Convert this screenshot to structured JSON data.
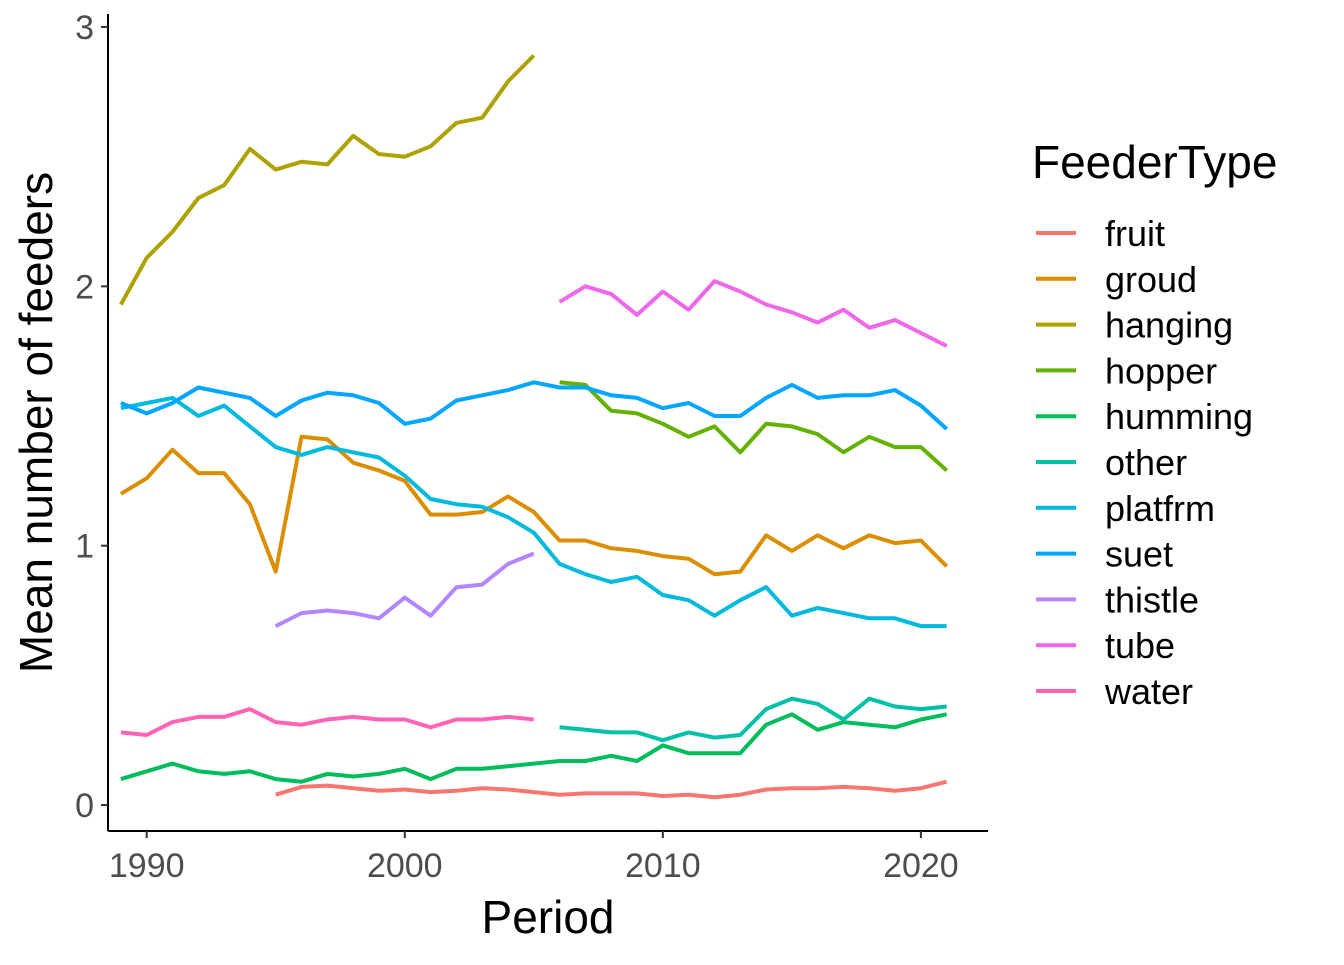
{
  "chart_data": {
    "type": "line",
    "xlabel": "Period",
    "ylabel": "Mean number of feeders",
    "xlim": [
      1988.5,
      2022.6
    ],
    "ylim": [
      -0.1,
      3.05
    ],
    "x_ticks": [
      1990,
      2000,
      2010,
      2020
    ],
    "y_ticks": [
      0,
      1,
      2,
      3
    ],
    "grid": false,
    "legend": {
      "title": "FeederType",
      "position": "right"
    },
    "series": [
      {
        "name": "fruit",
        "color": "#F8766D",
        "points": [
          [
            1995,
            0.04
          ],
          [
            1996,
            0.07
          ],
          [
            1997,
            0.075
          ],
          [
            1998,
            0.065
          ],
          [
            1999,
            0.055
          ],
          [
            2000,
            0.06
          ],
          [
            2001,
            0.05
          ],
          [
            2002,
            0.055
          ],
          [
            2003,
            0.065
          ],
          [
            2004,
            0.06
          ],
          [
            2005,
            0.05
          ],
          [
            2006,
            0.04
          ],
          [
            2007,
            0.045
          ],
          [
            2008,
            0.045
          ],
          [
            2009,
            0.045
          ],
          [
            2010,
            0.035
          ],
          [
            2011,
            0.04
          ],
          [
            2012,
            0.03
          ],
          [
            2013,
            0.04
          ],
          [
            2014,
            0.06
          ],
          [
            2015,
            0.065
          ],
          [
            2016,
            0.065
          ],
          [
            2017,
            0.07
          ],
          [
            2018,
            0.065
          ],
          [
            2019,
            0.055
          ],
          [
            2020,
            0.065
          ],
          [
            2021,
            0.09
          ]
        ]
      },
      {
        "name": "groud",
        "color": "#DB8E00",
        "points": [
          [
            1989,
            1.2
          ],
          [
            1990,
            1.26
          ],
          [
            1991,
            1.37
          ],
          [
            1992,
            1.28
          ],
          [
            1993,
            1.28
          ],
          [
            1994,
            1.16
          ],
          [
            1995,
            0.9
          ],
          [
            1996,
            1.42
          ],
          [
            1997,
            1.41
          ],
          [
            1998,
            1.32
          ],
          [
            1999,
            1.29
          ],
          [
            2000,
            1.25
          ],
          [
            2001,
            1.12
          ],
          [
            2002,
            1.12
          ],
          [
            2003,
            1.13
          ],
          [
            2004,
            1.19
          ],
          [
            2005,
            1.13
          ],
          [
            2006,
            1.02
          ],
          [
            2007,
            1.02
          ],
          [
            2008,
            0.99
          ],
          [
            2009,
            0.98
          ],
          [
            2010,
            0.96
          ],
          [
            2011,
            0.95
          ],
          [
            2012,
            0.89
          ],
          [
            2013,
            0.9
          ],
          [
            2014,
            1.04
          ],
          [
            2015,
            0.98
          ],
          [
            2016,
            1.04
          ],
          [
            2017,
            0.99
          ],
          [
            2018,
            1.04
          ],
          [
            2019,
            1.01
          ],
          [
            2020,
            1.02
          ],
          [
            2021,
            0.92
          ]
        ]
      },
      {
        "name": "hanging",
        "color": "#AEA200",
        "points": [
          [
            1989,
            1.93
          ],
          [
            1990,
            2.11
          ],
          [
            1991,
            2.21
          ],
          [
            1992,
            2.34
          ],
          [
            1993,
            2.39
          ],
          [
            1994,
            2.53
          ],
          [
            1995,
            2.45
          ],
          [
            1996,
            2.48
          ],
          [
            1997,
            2.47
          ],
          [
            1998,
            2.58
          ],
          [
            1999,
            2.51
          ],
          [
            2000,
            2.5
          ],
          [
            2001,
            2.54
          ],
          [
            2002,
            2.63
          ],
          [
            2003,
            2.65
          ],
          [
            2004,
            2.79
          ],
          [
            2005,
            2.89
          ]
        ]
      },
      {
        "name": "hopper",
        "color": "#64B200",
        "points": [
          [
            2006,
            1.63
          ],
          [
            2007,
            1.62
          ],
          [
            2008,
            1.52
          ],
          [
            2009,
            1.51
          ],
          [
            2010,
            1.47
          ],
          [
            2011,
            1.42
          ],
          [
            2012,
            1.46
          ],
          [
            2013,
            1.36
          ],
          [
            2014,
            1.47
          ],
          [
            2015,
            1.46
          ],
          [
            2016,
            1.43
          ],
          [
            2017,
            1.36
          ],
          [
            2018,
            1.42
          ],
          [
            2019,
            1.38
          ],
          [
            2020,
            1.38
          ],
          [
            2021,
            1.29
          ]
        ]
      },
      {
        "name": "humming",
        "color": "#00BD5C",
        "points": [
          [
            1989,
            0.1
          ],
          [
            1990,
            0.13
          ],
          [
            1991,
            0.16
          ],
          [
            1992,
            0.13
          ],
          [
            1993,
            0.12
          ],
          [
            1994,
            0.13
          ],
          [
            1995,
            0.1
          ],
          [
            1996,
            0.09
          ],
          [
            1997,
            0.12
          ],
          [
            1998,
            0.11
          ],
          [
            1999,
            0.12
          ],
          [
            2000,
            0.14
          ],
          [
            2001,
            0.1
          ],
          [
            2002,
            0.14
          ],
          [
            2003,
            0.14
          ],
          [
            2004,
            0.15
          ],
          [
            2005,
            0.16
          ],
          [
            2006,
            0.17
          ],
          [
            2007,
            0.17
          ],
          [
            2008,
            0.19
          ],
          [
            2009,
            0.17
          ],
          [
            2010,
            0.23
          ],
          [
            2011,
            0.2
          ],
          [
            2012,
            0.2
          ],
          [
            2013,
            0.2
          ],
          [
            2014,
            0.31
          ],
          [
            2015,
            0.35
          ],
          [
            2016,
            0.29
          ],
          [
            2017,
            0.32
          ],
          [
            2018,
            0.31
          ],
          [
            2019,
            0.3
          ],
          [
            2020,
            0.33
          ],
          [
            2021,
            0.35
          ]
        ]
      },
      {
        "name": "other",
        "color": "#00C1A7",
        "points": [
          [
            2006,
            0.3
          ],
          [
            2007,
            0.29
          ],
          [
            2008,
            0.28
          ],
          [
            2009,
            0.28
          ],
          [
            2010,
            0.25
          ],
          [
            2011,
            0.28
          ],
          [
            2012,
            0.26
          ],
          [
            2013,
            0.27
          ],
          [
            2014,
            0.37
          ],
          [
            2015,
            0.41
          ],
          [
            2016,
            0.39
          ],
          [
            2017,
            0.33
          ],
          [
            2018,
            0.41
          ],
          [
            2019,
            0.38
          ],
          [
            2020,
            0.37
          ],
          [
            2021,
            0.38
          ]
        ]
      },
      {
        "name": "platfrm",
        "color": "#00BADE",
        "points": [
          [
            1989,
            1.53
          ],
          [
            1990,
            1.55
          ],
          [
            1991,
            1.57
          ],
          [
            1992,
            1.5
          ],
          [
            1993,
            1.54
          ],
          [
            1994,
            1.46
          ],
          [
            1995,
            1.38
          ],
          [
            1996,
            1.35
          ],
          [
            1997,
            1.38
          ],
          [
            1998,
            1.36
          ],
          [
            1999,
            1.34
          ],
          [
            2000,
            1.27
          ],
          [
            2001,
            1.18
          ],
          [
            2002,
            1.16
          ],
          [
            2003,
            1.15
          ],
          [
            2004,
            1.11
          ],
          [
            2005,
            1.05
          ],
          [
            2006,
            0.93
          ],
          [
            2007,
            0.89
          ],
          [
            2008,
            0.86
          ],
          [
            2009,
            0.88
          ],
          [
            2010,
            0.81
          ],
          [
            2011,
            0.79
          ],
          [
            2012,
            0.73
          ],
          [
            2013,
            0.79
          ],
          [
            2014,
            0.84
          ],
          [
            2015,
            0.73
          ],
          [
            2016,
            0.76
          ],
          [
            2017,
            0.74
          ],
          [
            2018,
            0.72
          ],
          [
            2019,
            0.72
          ],
          [
            2020,
            0.69
          ],
          [
            2021,
            0.69
          ]
        ]
      },
      {
        "name": "suet",
        "color": "#00A6FF",
        "points": [
          [
            1989,
            1.55
          ],
          [
            1990,
            1.51
          ],
          [
            1991,
            1.55
          ],
          [
            1992,
            1.61
          ],
          [
            1993,
            1.59
          ],
          [
            1994,
            1.57
          ],
          [
            1995,
            1.5
          ],
          [
            1996,
            1.56
          ],
          [
            1997,
            1.59
          ],
          [
            1998,
            1.58
          ],
          [
            1999,
            1.55
          ],
          [
            2000,
            1.47
          ],
          [
            2001,
            1.49
          ],
          [
            2002,
            1.56
          ],
          [
            2003,
            1.58
          ],
          [
            2004,
            1.6
          ],
          [
            2005,
            1.63
          ],
          [
            2006,
            1.61
          ],
          [
            2007,
            1.61
          ],
          [
            2008,
            1.58
          ],
          [
            2009,
            1.57
          ],
          [
            2010,
            1.53
          ],
          [
            2011,
            1.55
          ],
          [
            2012,
            1.5
          ],
          [
            2013,
            1.5
          ],
          [
            2014,
            1.57
          ],
          [
            2015,
            1.62
          ],
          [
            2016,
            1.57
          ],
          [
            2017,
            1.58
          ],
          [
            2018,
            1.58
          ],
          [
            2019,
            1.6
          ],
          [
            2020,
            1.54
          ],
          [
            2021,
            1.45
          ]
        ]
      },
      {
        "name": "thistle",
        "color": "#B385FF",
        "points": [
          [
            1995,
            0.69
          ],
          [
            1996,
            0.74
          ],
          [
            1997,
            0.75
          ],
          [
            1998,
            0.74
          ],
          [
            1999,
            0.72
          ],
          [
            2000,
            0.8
          ],
          [
            2001,
            0.73
          ],
          [
            2002,
            0.84
          ],
          [
            2003,
            0.85
          ],
          [
            2004,
            0.93
          ],
          [
            2005,
            0.97
          ]
        ]
      },
      {
        "name": "tube",
        "color": "#EF67EB",
        "points": [
          [
            2006,
            1.94
          ],
          [
            2007,
            2.0
          ],
          [
            2008,
            1.97
          ],
          [
            2009,
            1.89
          ],
          [
            2010,
            1.98
          ],
          [
            2011,
            1.91
          ],
          [
            2012,
            2.02
          ],
          [
            2013,
            1.98
          ],
          [
            2014,
            1.93
          ],
          [
            2015,
            1.9
          ],
          [
            2016,
            1.86
          ],
          [
            2017,
            1.91
          ],
          [
            2018,
            1.84
          ],
          [
            2019,
            1.87
          ],
          [
            2020,
            1.82
          ],
          [
            2021,
            1.77
          ]
        ]
      },
      {
        "name": "water",
        "color": "#FF63B6",
        "points": [
          [
            1989,
            0.28
          ],
          [
            1990,
            0.27
          ],
          [
            1991,
            0.32
          ],
          [
            1992,
            0.34
          ],
          [
            1993,
            0.34
          ],
          [
            1994,
            0.37
          ],
          [
            1995,
            0.32
          ],
          [
            1996,
            0.31
          ],
          [
            1997,
            0.33
          ],
          [
            1998,
            0.34
          ],
          [
            1999,
            0.33
          ],
          [
            2000,
            0.33
          ],
          [
            2001,
            0.3
          ],
          [
            2002,
            0.33
          ],
          [
            2003,
            0.33
          ],
          [
            2004,
            0.34
          ],
          [
            2005,
            0.33
          ]
        ]
      }
    ]
  }
}
